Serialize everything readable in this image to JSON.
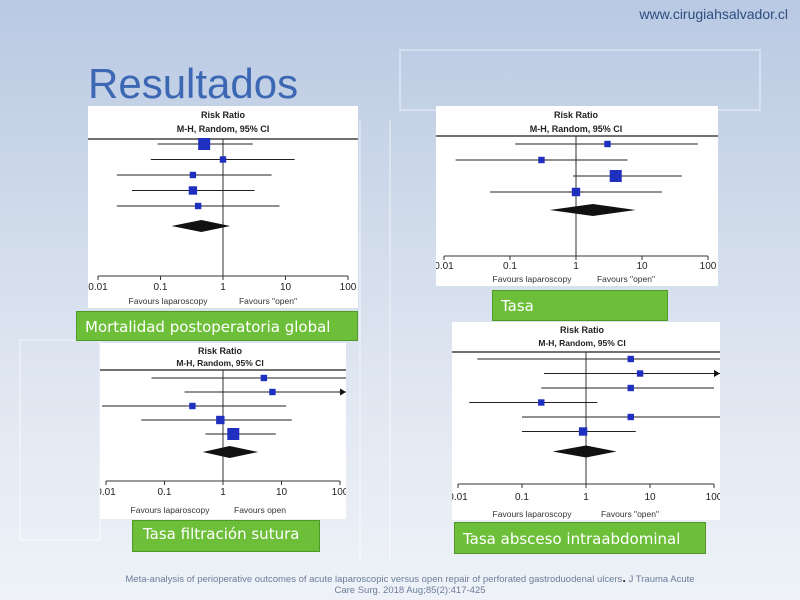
{
  "site": {
    "url": "www.cirugiahsalvador.cl"
  },
  "slide": {
    "title": "Resultados"
  },
  "common": {
    "header_line1": "Risk Ratio",
    "header_line2": "M-H, Random, 95% CI",
    "ticks": [
      "0.01",
      "0.1",
      "1",
      "10",
      "100"
    ],
    "favours_left": "Favours laparoscopy",
    "favours_right": "Favours \"open\"",
    "favours_right_plain": "Favours open"
  },
  "plots": [
    {
      "caption": "Mortalidad postoperatoria global",
      "chart_data": {
        "type": "forest",
        "xscale": "log",
        "xlim": [
          0.01,
          100
        ],
        "studies": [
          {
            "rr": 0.5,
            "lo": 0.09,
            "hi": 3.0,
            "weight": "large"
          },
          {
            "rr": 1.0,
            "lo": 0.07,
            "hi": 14,
            "weight": "small"
          },
          {
            "rr": 0.33,
            "lo": 0.02,
            "hi": 6.0,
            "weight": "small"
          },
          {
            "rr": 0.33,
            "lo": 0.035,
            "hi": 3.2,
            "weight": "medium"
          },
          {
            "rr": 0.4,
            "lo": 0.02,
            "hi": 8.0,
            "weight": "small"
          }
        ],
        "pooled": {
          "rr": 0.45,
          "lo": 0.15,
          "hi": 1.3
        }
      }
    },
    {
      "caption": "Tasa",
      "chart_data": {
        "type": "forest",
        "xscale": "log",
        "xlim": [
          0.01,
          100
        ],
        "studies": [
          {
            "rr": 3.0,
            "lo": 0.12,
            "hi": 70,
            "weight": "small"
          },
          {
            "rr": 0.3,
            "lo": 0.015,
            "hi": 6.0,
            "weight": "small"
          },
          {
            "rr": 4.0,
            "lo": 0.9,
            "hi": 40,
            "weight": "large"
          },
          {
            "rr": 1.0,
            "lo": 0.05,
            "hi": 20,
            "weight": "medium"
          }
        ],
        "pooled": {
          "rr": 1.8,
          "lo": 0.4,
          "hi": 8.0
        }
      }
    },
    {
      "caption": "Tasa filtración sutura",
      "chart_data": {
        "type": "forest",
        "xscale": "log",
        "xlim": [
          0.01,
          100
        ],
        "studies": [
          {
            "rr": 5.0,
            "lo": 0.06,
            "hi": 300,
            "weight": "small",
            "arrow": false
          },
          {
            "rr": 7.0,
            "lo": 0.22,
            "hi": 200,
            "weight": "small",
            "arrow": true
          },
          {
            "rr": 0.3,
            "lo": 0.008,
            "hi": 12,
            "weight": "small"
          },
          {
            "rr": 0.9,
            "lo": 0.04,
            "hi": 15,
            "weight": "medium"
          },
          {
            "rr": 1.5,
            "lo": 0.5,
            "hi": 8,
            "weight": "large"
          }
        ],
        "pooled": {
          "rr": 1.3,
          "lo": 0.45,
          "hi": 4.0
        }
      }
    },
    {
      "caption": "Tasa absceso intraabdominal",
      "chart_data": {
        "type": "forest",
        "xscale": "log",
        "xlim": [
          0.01,
          100
        ],
        "studies": [
          {
            "rr": 5.0,
            "lo": 0.02,
            "hi": 300,
            "weight": "small"
          },
          {
            "rr": 7.0,
            "lo": 0.22,
            "hi": 200,
            "weight": "small",
            "arrow": true
          },
          {
            "rr": 5.0,
            "lo": 0.2,
            "hi": 100,
            "weight": "small"
          },
          {
            "rr": 0.2,
            "lo": 0.015,
            "hi": 1.5,
            "weight": "small"
          },
          {
            "rr": 5.0,
            "lo": 0.1,
            "hi": 200,
            "weight": "small"
          },
          {
            "rr": 0.9,
            "lo": 0.1,
            "hi": 6,
            "weight": "medium"
          }
        ],
        "pooled": {
          "rr": 1.0,
          "lo": 0.3,
          "hi": 3.0
        }
      }
    }
  ],
  "citation": {
    "text": "Meta-analysis of perioperative outcomes of acute laparoscopic versus open repair of perforated gastroduodenal ulcers",
    "dot": ".",
    "journal": "J Trauma Acute",
    "ref": "Care Surg. 2018 Aug;85(2):417-425"
  },
  "colors": {
    "title": "#3b67b3",
    "caption_bg": "#6dbf3a",
    "marker": "#1f2fbf"
  }
}
